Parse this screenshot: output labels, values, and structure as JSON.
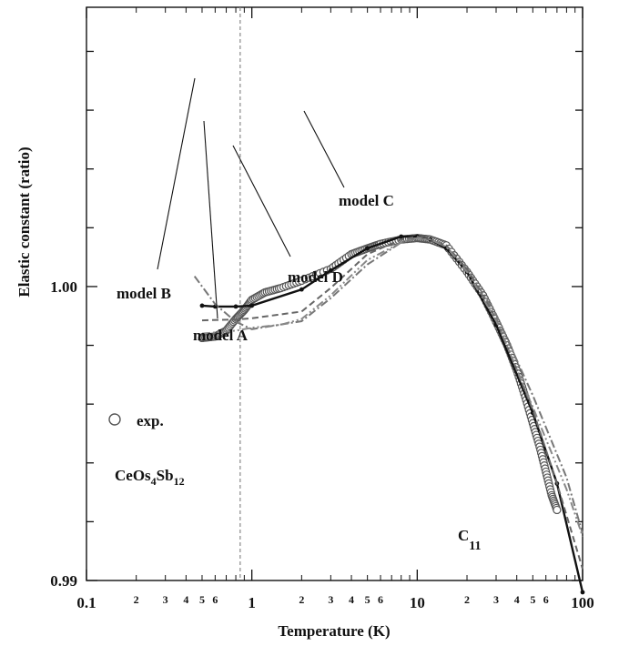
{
  "chart_data": {
    "type": "scatter",
    "xscale": "log",
    "xlim": [
      0.1,
      100
    ],
    "ylim": [
      0.99,
      1.0095
    ],
    "xlabel": "Temperature (K)",
    "ylabel": "Elastic constant (ratio)",
    "x_major_ticks": [
      "0.1",
      "1",
      "10",
      "100"
    ],
    "x_minor_ticks": [
      "2",
      "3",
      "4",
      "5",
      "6"
    ],
    "y_ticks": [
      "1.00",
      "0.99"
    ],
    "vertical_dashed_line_x": 0.85,
    "legend": {
      "marker": "○",
      "label": "exp."
    },
    "compound": {
      "base": "CeOs",
      "sub1": "4",
      "mid": "Sb",
      "sub2": "12"
    },
    "mode": {
      "base": "C",
      "sub": "11"
    },
    "annotations": [
      "model A",
      "model B",
      "model C",
      "model D"
    ],
    "series": [
      {
        "name": "exp.",
        "style": "circles",
        "x": [
          0.5,
          0.6,
          0.7,
          0.8,
          0.9,
          1.0,
          1.2,
          1.5,
          2,
          3,
          4,
          5,
          6,
          8,
          10,
          12,
          15,
          20,
          25,
          30,
          35,
          40,
          45,
          50,
          55,
          60,
          65,
          70
        ],
        "y": [
          0.99825,
          0.9983,
          0.9985,
          0.9989,
          0.9992,
          0.99955,
          0.9998,
          0.99995,
          1.0002,
          1.0006,
          1.0011,
          1.0013,
          1.00145,
          1.0016,
          1.00165,
          1.0016,
          1.0014,
          1.0005,
          0.9997,
          0.9988,
          0.998,
          0.99715,
          0.99625,
          0.99535,
          0.99455,
          0.9937,
          0.9929,
          0.9924
        ]
      },
      {
        "name": "model A",
        "style": "solid",
        "x": [
          0.5,
          0.6,
          0.8,
          1,
          2,
          3,
          5,
          8,
          10,
          12,
          15,
          20,
          30,
          50,
          70,
          100
        ],
        "y": [
          0.99935,
          0.99932,
          0.99932,
          0.99935,
          0.9999,
          1.00055,
          1.0013,
          1.0017,
          1.0017,
          1.0016,
          1.0013,
          1.0005,
          0.9987,
          0.9957,
          0.9933,
          0.9896
        ]
      },
      {
        "name": "model B",
        "style": "dash-dot",
        "x": [
          0.45,
          0.6,
          0.8,
          1,
          2,
          3,
          5,
          8,
          10,
          12,
          15,
          20,
          30,
          50,
          80,
          100
        ],
        "y": [
          1.00035,
          0.9994,
          0.9988,
          0.99855,
          0.99882,
          0.9996,
          1.00075,
          1.0015,
          1.00165,
          1.0016,
          1.00135,
          1.0006,
          0.99905,
          0.9963,
          0.9935,
          0.9916
        ]
      },
      {
        "name": "model C",
        "style": "dashed",
        "x": [
          0.5,
          0.8,
          1,
          2,
          3,
          5,
          8,
          10,
          12,
          15,
          20,
          30,
          50,
          70,
          100
        ],
        "y": [
          0.99885,
          0.99888,
          0.99892,
          0.99915,
          0.99995,
          1.0011,
          1.0016,
          1.0017,
          1.0016,
          1.0014,
          1.0006,
          0.9989,
          0.9958,
          0.9933,
          0.9904
        ]
      },
      {
        "name": "model D",
        "style": "dash-dot-dot",
        "x": [
          0.5,
          0.8,
          1,
          1.5,
          2,
          3,
          5,
          8,
          10,
          12,
          15,
          20,
          30,
          50,
          80,
          100
        ],
        "y": [
          0.9984,
          0.9985,
          0.9986,
          0.9987,
          0.9989,
          0.9997,
          1.0009,
          1.0015,
          1.00165,
          1.0016,
          1.00135,
          1.0005,
          0.99885,
          0.9959,
          0.9931,
          0.9915
        ]
      }
    ]
  }
}
